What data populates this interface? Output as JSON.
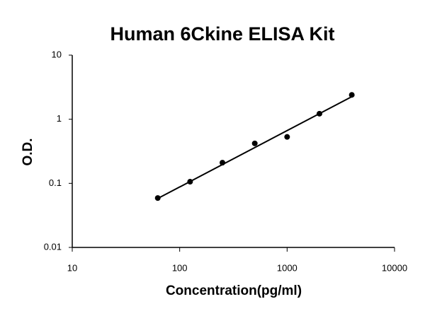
{
  "chart_data": {
    "type": "scatter",
    "title": "Human 6Ckine ELISA Kit",
    "x_label": "Concentration(pg/ml)",
    "y_label": "O.D.",
    "x": [
      62.5,
      125,
      250,
      500,
      1000,
      2000,
      4000
    ],
    "values": [
      0.059,
      0.106,
      0.21,
      0.42,
      0.53,
      1.22,
      2.4
    ],
    "color": "#000000",
    "trendline": {
      "x": [
        62.5,
        4000
      ],
      "values": [
        0.058,
        2.25
      ]
    },
    "x_log": true,
    "y_log": true,
    "xlim": [
      10,
      10000
    ],
    "ylim": [
      0.01,
      10
    ],
    "xticks": [
      10,
      100,
      1000,
      10000
    ],
    "yticks": [
      0.01,
      0.1,
      1,
      10
    ],
    "grid": false
  }
}
